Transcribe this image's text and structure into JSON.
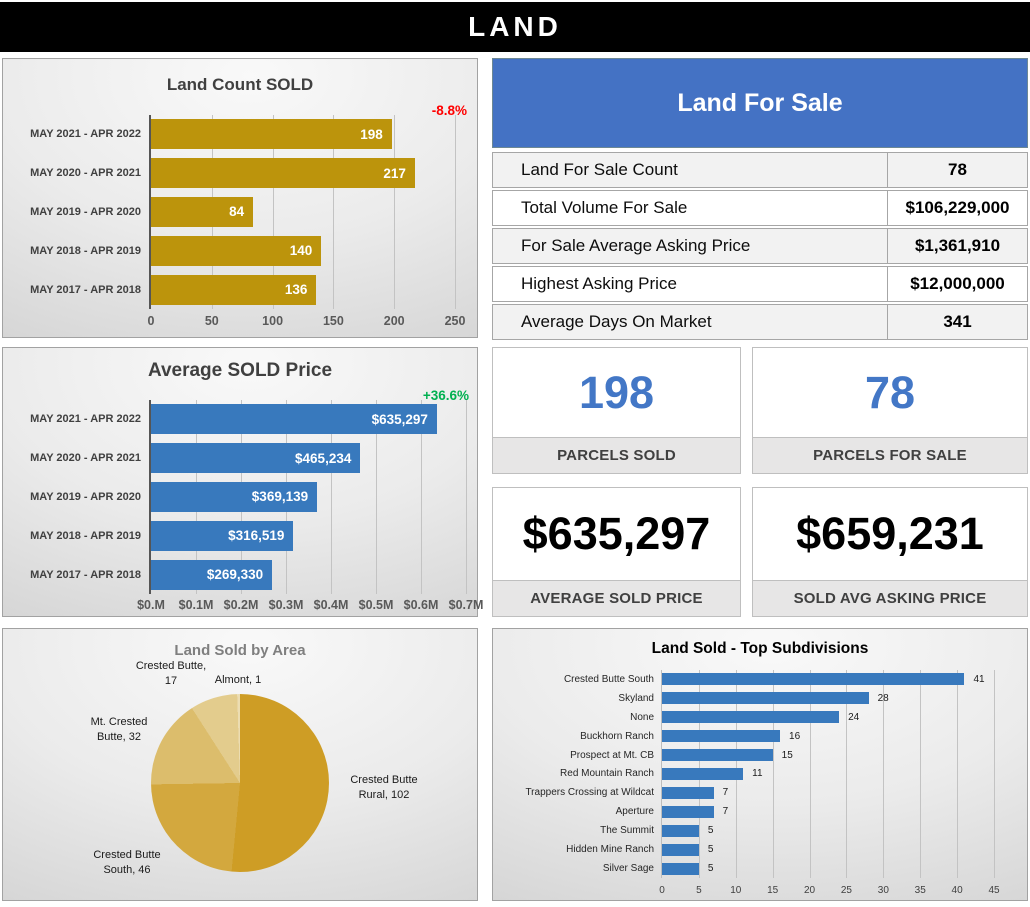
{
  "banner": {
    "title": "LAND"
  },
  "colors": {
    "banner_bg": "#000000",
    "table_header_blue": "#4472C4",
    "gold": "#BC940C",
    "blue": "#3879BD",
    "negative_red": "#FF0000",
    "positive_green": "#00B050",
    "kpi_blue": "#4377C6"
  },
  "for_sale_table": {
    "title": "Land For Sale",
    "rows": [
      {
        "label": "Land For Sale Count",
        "value": "78"
      },
      {
        "label": "Total Volume For Sale",
        "value": "$106,229,000"
      },
      {
        "label": "For Sale Average Asking Price",
        "value": "$1,361,910"
      },
      {
        "label": "Highest Asking Price",
        "value": "$12,000,000"
      },
      {
        "label": "Average Days On Market",
        "value": "341"
      }
    ]
  },
  "kpis": [
    {
      "value": "198",
      "label": "PARCELS SOLD",
      "value_color": "#4377C6"
    },
    {
      "value": "78",
      "label": "PARCELS FOR SALE",
      "value_color": "#4377C6"
    },
    {
      "value": "$635,297",
      "label": "AVERAGE SOLD PRICE",
      "value_color": "#000000"
    },
    {
      "value": "$659,231",
      "label": "SOLD AVG ASKING PRICE",
      "value_color": "#000000"
    }
  ],
  "chart_data": [
    {
      "id": "land_count_sold",
      "type": "bar",
      "orientation": "horizontal",
      "title": "Land Count SOLD",
      "change_label": "-8.8%",
      "change_color": "#FF0000",
      "categories": [
        "MAY 2021 - APR 2022",
        "MAY 2020 - APR 2021",
        "MAY 2019 - APR 2020",
        "MAY 2018 - APR 2019",
        "MAY 2017 - APR 2018"
      ],
      "values": [
        198,
        217,
        84,
        140,
        136
      ],
      "value_labels": [
        "198",
        "217",
        "84",
        "140",
        "136"
      ],
      "value_label_position": "inside",
      "xlim": [
        0,
        250
      ],
      "xticks": [
        0,
        50,
        100,
        150,
        200,
        250
      ],
      "xtick_labels": [
        "0",
        "50",
        "100",
        "150",
        "200",
        "250"
      ],
      "bar_color": "#BC940C",
      "grid": true,
      "legend": "none"
    },
    {
      "id": "average_sold_price",
      "type": "bar",
      "orientation": "horizontal",
      "title": "Average SOLD Price",
      "change_label": "+36.6%",
      "change_color": "#00B050",
      "categories": [
        "MAY 2021 - APR 2022",
        "MAY 2020 - APR 2021",
        "MAY 2019 - APR 2020",
        "MAY 2018 - APR 2019",
        "MAY 2017 - APR 2018"
      ],
      "values": [
        635297,
        465234,
        369139,
        316519,
        269330
      ],
      "value_labels": [
        "$635,297",
        "$465,234",
        "$369,139",
        "$316,519",
        "$269,330"
      ],
      "value_label_position": "inside",
      "xlim": [
        0,
        700000
      ],
      "xticks": [
        0,
        100000,
        200000,
        300000,
        400000,
        500000,
        600000,
        700000
      ],
      "xtick_labels": [
        "$0.M",
        "$0.1M",
        "$0.2M",
        "$0.3M",
        "$0.4M",
        "$0.5M",
        "$0.6M",
        "$0.7M"
      ],
      "bar_color": "#3879BD",
      "grid": true,
      "legend": "none"
    },
    {
      "id": "land_sold_by_area",
      "type": "pie",
      "title": "Land Sold by Area",
      "slices": [
        {
          "label": "Crested Butte Rural",
          "value": 102,
          "color": "#CE9D25",
          "display": "Crested Butte\nRural, 102"
        },
        {
          "label": "Crested Butte South",
          "value": 46,
          "color": "#D3A83E",
          "display": "Crested Butte\nSouth, 46"
        },
        {
          "label": "Mt. Crested Butte",
          "value": 32,
          "color": "#DCBD6C",
          "display": "Mt. Crested\nButte, 32"
        },
        {
          "label": "Crested Butte",
          "value": 17,
          "color": "#E3CC8D",
          "display": "Crested Butte,\n17"
        },
        {
          "label": "Almont",
          "value": 1,
          "color": "#ECDDB2",
          "display": "Almont, 1"
        }
      ],
      "start_angle_deg": 0,
      "direction": "clockwise",
      "legend": "none"
    },
    {
      "id": "land_sold_top_subdivisions",
      "type": "bar",
      "orientation": "horizontal",
      "title": "Land Sold - Top Subdivisions",
      "categories": [
        "Crested Butte South",
        "Skyland",
        "None",
        "Buckhorn Ranch",
        "Prospect at Mt. CB",
        "Red Mountain Ranch",
        "Trappers Crossing at Wildcat",
        "Aperture",
        "The Summit",
        "Hidden Mine Ranch",
        "Silver Sage"
      ],
      "values": [
        41,
        28,
        24,
        16,
        15,
        11,
        7,
        7,
        5,
        5,
        5
      ],
      "value_labels": [
        "41",
        "28",
        "24",
        "16",
        "15",
        "11",
        "7",
        "7",
        "5",
        "5",
        "5"
      ],
      "value_label_position": "outside",
      "xlim": [
        0,
        45
      ],
      "xticks": [
        0,
        5,
        10,
        15,
        20,
        25,
        30,
        35,
        40,
        45
      ],
      "xtick_labels": [
        "0",
        "5",
        "10",
        "15",
        "20",
        "25",
        "30",
        "35",
        "40",
        "45"
      ],
      "bar_color": "#3879BD",
      "grid": true,
      "legend": "none"
    }
  ]
}
